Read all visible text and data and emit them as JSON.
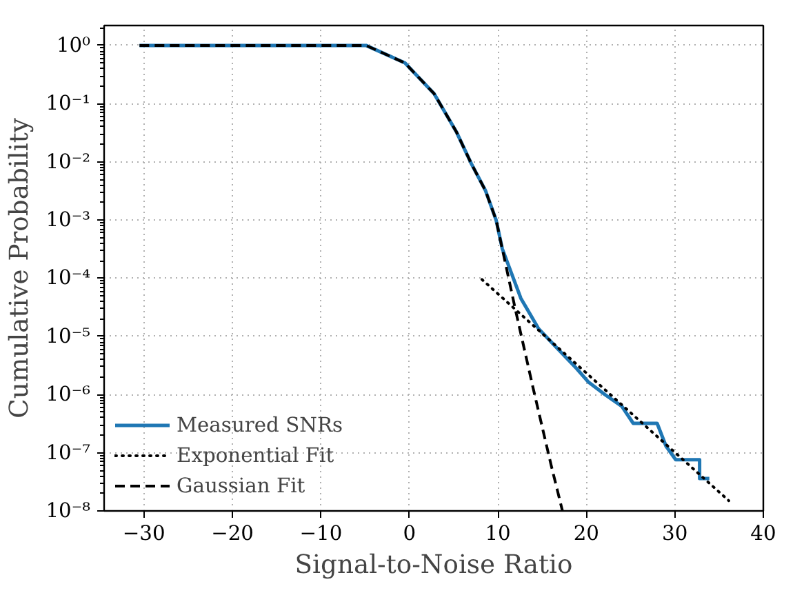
{
  "chart_data": {
    "type": "line",
    "xlabel": "Signal-to-Noise Ratio",
    "ylabel": "Cumulative Probability",
    "log": "y",
    "grid": true,
    "legend": "bottom left",
    "xlim": [
      -34.5,
      40
    ],
    "xticks": [
      -30,
      -20,
      -10,
      0,
      10,
      20,
      30,
      40
    ],
    "ylim": [
      1e-08,
      2.2
    ],
    "yticks": [
      {
        "value": 1,
        "label": "10⁰"
      },
      {
        "value": 0.1,
        "label": "10⁻¹"
      },
      {
        "value": 0.01,
        "label": "10⁻²"
      },
      {
        "value": 0.001,
        "label": "10⁻³"
      },
      {
        "value": 0.0001,
        "label": "10⁻⁴"
      },
      {
        "value": 1e-05,
        "label": "10⁻⁵"
      },
      {
        "value": 1e-06,
        "label": "10⁻⁶"
      },
      {
        "value": 1e-07,
        "label": "10⁻⁷"
      },
      {
        "value": 1e-08,
        "label": "10⁻⁸"
      }
    ],
    "series": [
      {
        "name": "Measured SNRs",
        "color": "#1f77b4",
        "line_style": "solid",
        "x": [
          -30.5,
          -4.9,
          -0.5,
          2.8,
          5.3,
          7,
          8.6,
          9.8,
          10.5,
          12.6,
          14.6,
          17,
          18.9,
          20.2,
          22.1,
          24,
          25.3,
          28,
          29,
          30.1,
          32.8,
          32.8,
          33.9
        ],
        "values": [
          1,
          1,
          0.5,
          0.148,
          0.033,
          0.0093,
          0.0032,
          0.001,
          0.00032,
          4.5e-05,
          1.35e-05,
          5.6e-06,
          2.8e-06,
          1.66e-06,
          1e-06,
          6.3e-07,
          3.2e-07,
          3.2e-07,
          1.3e-07,
          7.6e-08,
          7.6e-08,
          3.6e-08,
          3.6e-08
        ]
      },
      {
        "name": "Exponential Fit",
        "color": "#000000",
        "line_style": "dotted",
        "x": [
          8.2,
          36.1
        ],
        "values": [
          9.5e-05,
          1.5e-08
        ]
      },
      {
        "name": "Gaussian Fit",
        "color": "#000000",
        "line_style": "dashed",
        "x": [
          -30.5,
          -4.9,
          -0.5,
          2.8,
          5.3,
          7,
          8.6,
          9.8,
          10.5,
          12,
          14,
          16,
          17.3
        ],
        "values": [
          1,
          1,
          0.5,
          0.148,
          0.033,
          0.0093,
          0.0032,
          0.001,
          0.00032,
          2.8e-05,
          1.26e-06,
          6.3e-08,
          1e-08
        ]
      }
    ]
  }
}
